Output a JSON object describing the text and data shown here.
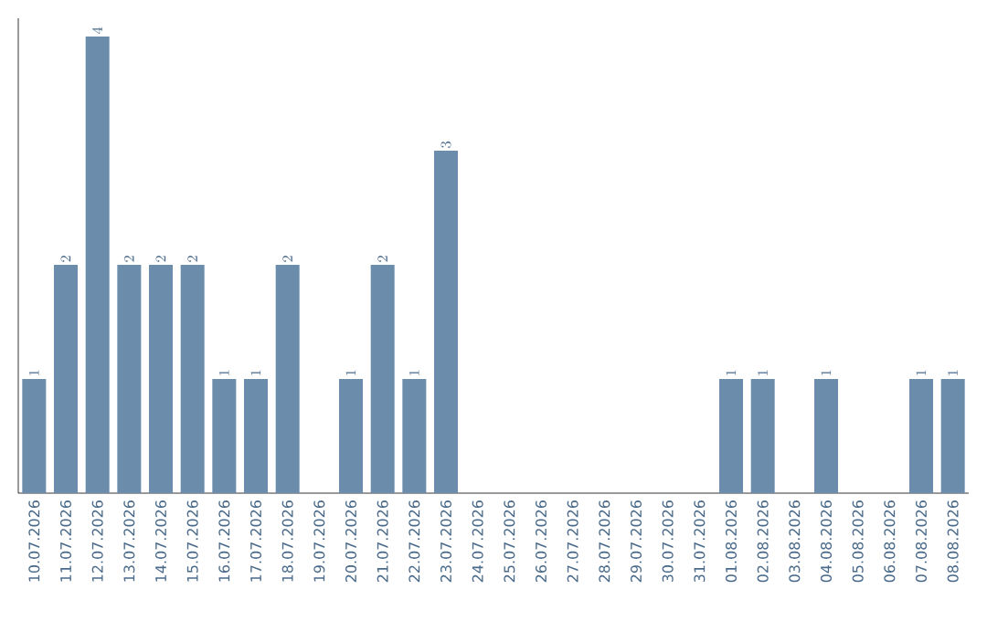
{
  "chart_data": {
    "type": "bar",
    "categories": [
      "10.07.2026",
      "11.07.2026",
      "12.07.2026",
      "13.07.2026",
      "14.07.2026",
      "15.07.2026",
      "16.07.2026",
      "17.07.2026",
      "18.07.2026",
      "19.07.2026",
      "20.07.2026",
      "21.07.2026",
      "22.07.2026",
      "23.07.2026",
      "24.07.2026",
      "25.07.2026",
      "26.07.2026",
      "27.07.2026",
      "28.07.2026",
      "29.07.2026",
      "30.07.2026",
      "31.07.2026",
      "01.08.2026",
      "02.08.2026",
      "03.08.2026",
      "04.08.2026",
      "05.08.2026",
      "06.08.2026",
      "07.08.2026",
      "08.08.2026"
    ],
    "values": [
      1,
      2,
      4,
      2,
      2,
      2,
      1,
      1,
      2,
      null,
      1,
      2,
      1,
      3,
      null,
      null,
      null,
      null,
      null,
      null,
      null,
      null,
      1,
      1,
      null,
      1,
      null,
      null,
      1,
      1
    ],
    "color": "#6b8cab",
    "data_labels": true
  }
}
